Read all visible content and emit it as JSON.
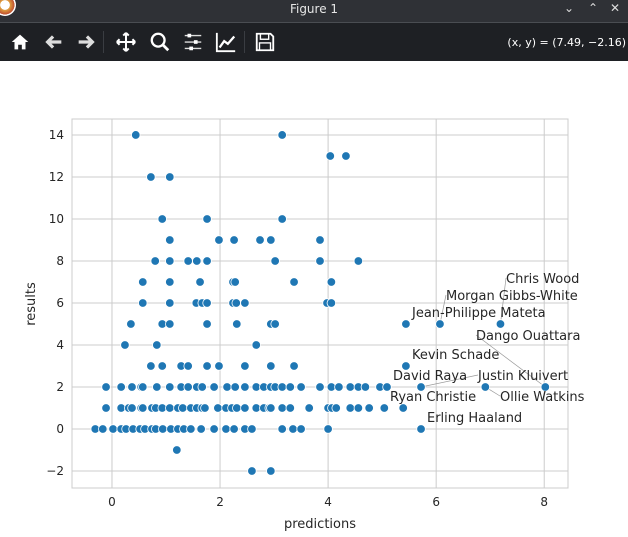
{
  "window": {
    "title": "Figure 1",
    "controls": [
      "minimize",
      "maximize",
      "close"
    ]
  },
  "toolbar": {
    "buttons": [
      "home-icon",
      "back-icon",
      "forward-icon",
      "pan-icon",
      "zoom-icon",
      "configure-subplots-icon",
      "edit-axis-icon",
      "save-icon"
    ],
    "coords": "(x, y) = (7.49, −2.16)"
  },
  "chart_data": {
    "type": "scatter",
    "xlabel": "predictions",
    "ylabel": "results",
    "xlim": [
      -0.74,
      8.44
    ],
    "ylim": [
      -2.81,
      14.76
    ],
    "xticks": [
      0,
      2,
      4,
      6,
      8
    ],
    "yticks": [
      -2,
      0,
      2,
      4,
      6,
      8,
      10,
      12,
      14
    ],
    "grid": true,
    "color": "#1f77b4",
    "points": [
      [
        0.44,
        14
      ],
      [
        3.15,
        14
      ],
      [
        4.04,
        13
      ],
      [
        4.33,
        13
      ],
      [
        0.72,
        12
      ],
      [
        1.07,
        12
      ],
      [
        0.93,
        10
      ],
      [
        1.76,
        10
      ],
      [
        3.15,
        10
      ],
      [
        1.07,
        9
      ],
      [
        1.98,
        9
      ],
      [
        2.26,
        9
      ],
      [
        2.74,
        9
      ],
      [
        2.94,
        9
      ],
      [
        3.85,
        9
      ],
      [
        0.8,
        8
      ],
      [
        1.07,
        8
      ],
      [
        1.41,
        8
      ],
      [
        1.57,
        8
      ],
      [
        1.76,
        8
      ],
      [
        3.02,
        8
      ],
      [
        3.85,
        8
      ],
      [
        4.56,
        8
      ],
      [
        0.57,
        7
      ],
      [
        1.07,
        7
      ],
      [
        1.63,
        7
      ],
      [
        2.24,
        7
      ],
      [
        2.28,
        7
      ],
      [
        3.37,
        7
      ],
      [
        4.06,
        7
      ],
      [
        0.57,
        6
      ],
      [
        1.07,
        6
      ],
      [
        1.56,
        6
      ],
      [
        1.67,
        6
      ],
      [
        1.76,
        6
      ],
      [
        2.24,
        6
      ],
      [
        2.3,
        6
      ],
      [
        2.46,
        6
      ],
      [
        3.98,
        6
      ],
      [
        4.06,
        6
      ],
      [
        0.35,
        5
      ],
      [
        0.93,
        5
      ],
      [
        1.07,
        5
      ],
      [
        1.76,
        5
      ],
      [
        2.31,
        5
      ],
      [
        2.94,
        5
      ],
      [
        3.02,
        5
      ],
      [
        5.44,
        5
      ],
      [
        6.07,
        5
      ],
      [
        7.19,
        5
      ],
      [
        0.24,
        4
      ],
      [
        0.83,
        4
      ],
      [
        2.67,
        4
      ],
      [
        0.72,
        3
      ],
      [
        0.93,
        3
      ],
      [
        1.28,
        3
      ],
      [
        1.41,
        3
      ],
      [
        1.76,
        3
      ],
      [
        1.98,
        3
      ],
      [
        2.46,
        3
      ],
      [
        2.94,
        3
      ],
      [
        3.37,
        3
      ],
      [
        5.44,
        3
      ],
      [
        -0.11,
        2
      ],
      [
        0.17,
        2
      ],
      [
        0.37,
        2
      ],
      [
        0.54,
        2
      ],
      [
        0.57,
        2
      ],
      [
        0.83,
        2
      ],
      [
        1.07,
        2
      ],
      [
        1.28,
        2
      ],
      [
        1.41,
        2
      ],
      [
        1.57,
        2
      ],
      [
        1.67,
        2
      ],
      [
        1.89,
        2
      ],
      [
        2.13,
        2
      ],
      [
        2.28,
        2
      ],
      [
        2.46,
        2
      ],
      [
        2.67,
        2
      ],
      [
        2.81,
        2
      ],
      [
        2.94,
        2
      ],
      [
        3.02,
        2
      ],
      [
        3.15,
        2
      ],
      [
        3.3,
        2
      ],
      [
        3.5,
        2
      ],
      [
        3.85,
        2
      ],
      [
        4.06,
        2
      ],
      [
        4.2,
        2
      ],
      [
        4.41,
        2
      ],
      [
        4.56,
        2
      ],
      [
        4.69,
        2
      ],
      [
        4.96,
        2
      ],
      [
        5.09,
        2
      ],
      [
        5.72,
        2
      ],
      [
        6.91,
        2
      ],
      [
        8.02,
        2
      ],
      [
        -0.11,
        1
      ],
      [
        0.17,
        1
      ],
      [
        0.31,
        1
      ],
      [
        0.37,
        1
      ],
      [
        0.54,
        1
      ],
      [
        0.57,
        1
      ],
      [
        0.74,
        1
      ],
      [
        0.81,
        1
      ],
      [
        0.93,
        1
      ],
      [
        1.07,
        1
      ],
      [
        1.22,
        1
      ],
      [
        1.31,
        1
      ],
      [
        1.46,
        1
      ],
      [
        1.57,
        1
      ],
      [
        1.67,
        1
      ],
      [
        1.72,
        1
      ],
      [
        1.96,
        1
      ],
      [
        2.11,
        1
      ],
      [
        2.22,
        1
      ],
      [
        2.31,
        1
      ],
      [
        2.46,
        1
      ],
      [
        2.67,
        1
      ],
      [
        2.81,
        1
      ],
      [
        2.91,
        1
      ],
      [
        2.94,
        1
      ],
      [
        3.15,
        1
      ],
      [
        3.3,
        1
      ],
      [
        3.65,
        1
      ],
      [
        4.0,
        1
      ],
      [
        4.07,
        1
      ],
      [
        4.15,
        1
      ],
      [
        4.41,
        1
      ],
      [
        4.56,
        1
      ],
      [
        4.76,
        1
      ],
      [
        5.04,
        1
      ],
      [
        5.39,
        1
      ],
      [
        -0.31,
        0
      ],
      [
        -0.17,
        0
      ],
      [
        0.02,
        0
      ],
      [
        0.17,
        0
      ],
      [
        0.26,
        0
      ],
      [
        0.39,
        0
      ],
      [
        0.52,
        0
      ],
      [
        0.61,
        0
      ],
      [
        0.74,
        0
      ],
      [
        0.81,
        0
      ],
      [
        0.94,
        0
      ],
      [
        1.09,
        0
      ],
      [
        1.22,
        0
      ],
      [
        1.33,
        0
      ],
      [
        1.46,
        0
      ],
      [
        1.65,
        0
      ],
      [
        1.89,
        0
      ],
      [
        2.11,
        0
      ],
      [
        2.26,
        0
      ],
      [
        2.46,
        0
      ],
      [
        2.59,
        0
      ],
      [
        3.15,
        0
      ],
      [
        3.35,
        0
      ],
      [
        3.5,
        0
      ],
      [
        4.0,
        0
      ],
      [
        5.72,
        0
      ],
      [
        1.2,
        -1
      ],
      [
        2.59,
        -2
      ],
      [
        2.94,
        -2
      ]
    ],
    "annotations": [
      {
        "text": "Jean-Philippe Mateta",
        "x": 5.44,
        "y": 5
      },
      {
        "text": "Morgan Gibbs-White",
        "x": 6.07,
        "y": 5
      },
      {
        "text": "Chris Wood",
        "x": 7.19,
        "y": 5
      },
      {
        "text": "Kevin Schade",
        "x": 5.44,
        "y": 3
      },
      {
        "text": "David Raya",
        "x": 5.09,
        "y": 2
      },
      {
        "text": "Justin Kluivert",
        "x": 5.72,
        "y": 2
      },
      {
        "text": "Ollie Watkins",
        "x": 6.91,
        "y": 2
      },
      {
        "text": "Dango Ouattara",
        "x": 8.02,
        "y": 2
      },
      {
        "text": "Ryan Christie",
        "x": 5.04,
        "y": 1
      },
      {
        "text": "Erling Haaland",
        "x": 5.72,
        "y": 0
      }
    ]
  }
}
